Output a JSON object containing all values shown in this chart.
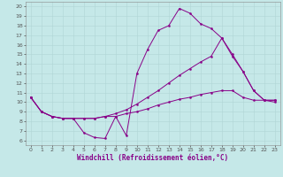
{
  "xlabel": "Windchill (Refroidissement éolien,°C)",
  "xlim": [
    -0.5,
    23.5
  ],
  "ylim": [
    5.5,
    20.5
  ],
  "xticks": [
    0,
    1,
    2,
    3,
    4,
    5,
    6,
    7,
    8,
    9,
    10,
    11,
    12,
    13,
    14,
    15,
    16,
    17,
    18,
    19,
    20,
    21,
    22,
    23
  ],
  "yticks": [
    6,
    7,
    8,
    9,
    10,
    11,
    12,
    13,
    14,
    15,
    16,
    17,
    18,
    19,
    20
  ],
  "bg_color": "#c5e8e8",
  "grid_color": "#b0d5d5",
  "line_color": "#880088",
  "line1_x": [
    0,
    1,
    2,
    3,
    4,
    5,
    6,
    7,
    8,
    9,
    10,
    11,
    12,
    13,
    14,
    15,
    16,
    17,
    18,
    19,
    20,
    21,
    22,
    23
  ],
  "line1_y": [
    10.5,
    9.0,
    8.5,
    8.3,
    8.3,
    6.8,
    6.3,
    6.2,
    8.5,
    6.5,
    13.0,
    15.5,
    17.5,
    18.0,
    19.8,
    19.3,
    18.2,
    17.7,
    16.7,
    15.0,
    13.2,
    11.2,
    10.2,
    10.2
  ],
  "line2_x": [
    0,
    1,
    2,
    3,
    4,
    5,
    6,
    7,
    8,
    9,
    10,
    11,
    12,
    13,
    14,
    15,
    16,
    17,
    18,
    19,
    20,
    21,
    22,
    23
  ],
  "line2_y": [
    10.5,
    9.0,
    8.5,
    8.3,
    8.3,
    8.3,
    8.3,
    8.5,
    8.8,
    9.2,
    9.8,
    10.5,
    11.2,
    12.0,
    12.8,
    13.5,
    14.2,
    14.8,
    16.7,
    14.8,
    13.2,
    11.2,
    10.2,
    10.2
  ],
  "line3_x": [
    0,
    1,
    2,
    3,
    4,
    5,
    6,
    7,
    8,
    9,
    10,
    11,
    12,
    13,
    14,
    15,
    16,
    17,
    18,
    19,
    20,
    21,
    22,
    23
  ],
  "line3_y": [
    10.5,
    9.0,
    8.5,
    8.3,
    8.3,
    8.3,
    8.3,
    8.5,
    8.5,
    8.8,
    9.0,
    9.3,
    9.7,
    10.0,
    10.3,
    10.5,
    10.8,
    11.0,
    11.2,
    11.2,
    10.5,
    10.2,
    10.2,
    10.0
  ],
  "tick_fontsize": 4.5,
  "label_fontsize": 5.5,
  "linewidth": 0.7,
  "markersize": 1.5
}
